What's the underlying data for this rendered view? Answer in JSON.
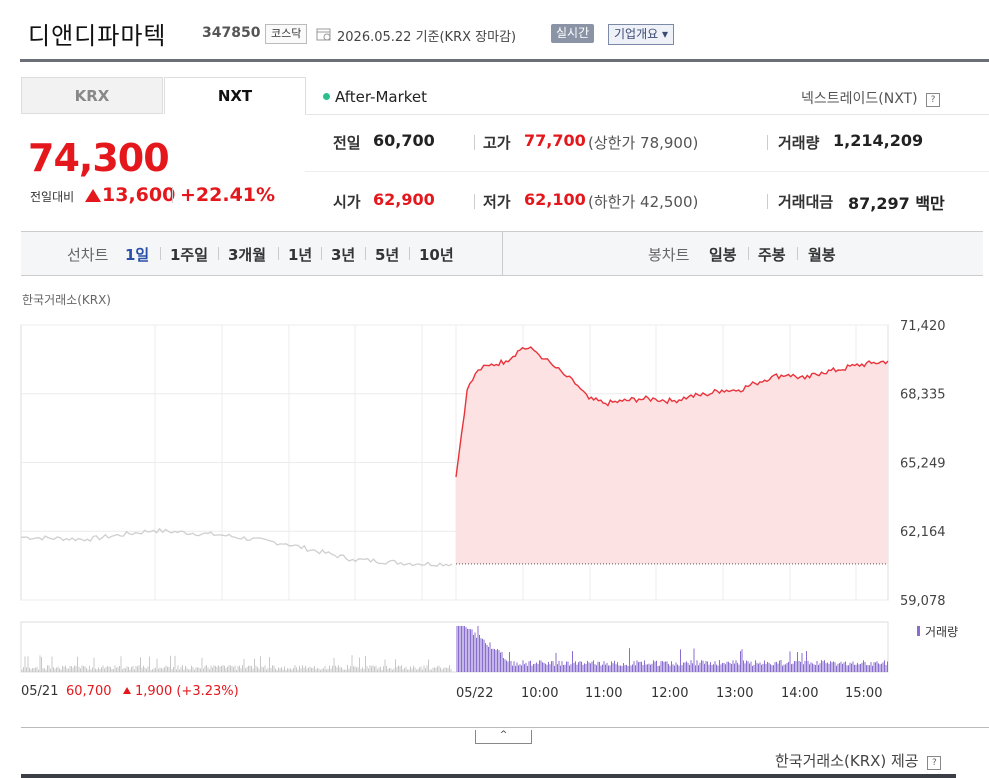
{
  "header": {
    "company_name": "디앤디파마텍",
    "stock_code": "347850",
    "market_badge": "코스닥",
    "date_text": "2026.05.22  기준(KRX 장마감)",
    "realtime_button": "실시간",
    "company_info_button": "기업개요 ▾"
  },
  "tabs": [
    {
      "label": "KRX",
      "selected": false
    },
    {
      "label": "NXT",
      "selected": true
    }
  ],
  "session": {
    "label": "After-Market",
    "nxt_link": "넥스트레이드(NXT)",
    "help": "?"
  },
  "price": {
    "current": "74,300",
    "change_label": "전일대비",
    "change_value": "13,600",
    "change_rate": "+22.41%"
  },
  "quotes": {
    "prev_close": {
      "label": "전일",
      "value": "60,700"
    },
    "high": {
      "label": "고가",
      "value": "77,700",
      "sub": "(상한가 78,900)"
    },
    "volume": {
      "label": "거래량",
      "value": "1,214,209"
    },
    "open": {
      "label": "시가",
      "value": "62,900"
    },
    "low": {
      "label": "저가",
      "value": "62,100",
      "sub": "(하한가 42,500)"
    },
    "trade_amount": {
      "label": "거래대금",
      "value": "87,297 백만"
    }
  },
  "period_bar": {
    "line_label": "선차트",
    "line_periods": [
      "1일",
      "1주일",
      "3개월",
      "1년",
      "3년",
      "5년",
      "10년"
    ],
    "selected_period": "1일",
    "candle_label": "봉차트",
    "candle_periods": [
      "일봉",
      "주봉",
      "월봉"
    ]
  },
  "chart_source": "한국거래소(KRX)",
  "chart_data": {
    "type": "line",
    "y_ticks": [
      "71,420",
      "68,335",
      "65,249",
      "62,164",
      "59,078"
    ],
    "ylim": [
      59078,
      71420
    ],
    "x_ticks": [
      "05/22",
      "10:00",
      "11:00",
      "12:00",
      "13:00",
      "14:00",
      "15:00"
    ],
    "prev_day_label": "05/21",
    "baseline": 60700,
    "colors": {
      "today_line": "#e8333a",
      "today_fill": "#fde2e3",
      "prev_line": "#cfcfcf",
      "volume": "#8a6ecf",
      "prev_volume": "#c8c8c8"
    },
    "volume_legend": "거래량",
    "series": [
      {
        "x": [
          "05/21 09:00",
          "05/21 10:00",
          "05/21 11:00",
          "05/21 12:00",
          "05/21 13:00",
          "05/21 14:00",
          "05/21 15:00",
          "05/21 15:30"
        ],
        "values": [
          61900,
          61800,
          62200,
          62000,
          61600,
          60900,
          60700,
          60700
        ]
      },
      {
        "x": [
          "05/22 09:00",
          "09:10",
          "09:20",
          "09:30",
          "09:45",
          "10:00",
          "10:10",
          "10:20",
          "10:30",
          "10:40",
          "10:50",
          "11:00",
          "11:15",
          "11:30",
          "11:45",
          "12:00",
          "12:15",
          "12:30",
          "12:45",
          "13:00",
          "13:15",
          "13:30",
          "13:45",
          "14:00",
          "14:15",
          "14:30",
          "14:45",
          "15:00",
          "15:15",
          "15:30"
        ],
        "values": [
          64600,
          68500,
          69400,
          69600,
          69800,
          70400,
          70300,
          69900,
          69500,
          69100,
          68700,
          68100,
          67900,
          68000,
          68100,
          68100,
          68000,
          68200,
          68300,
          68500,
          68500,
          68800,
          69100,
          69200,
          69000,
          69300,
          69400,
          69600,
          69700,
          69800
        ]
      }
    ]
  },
  "footer": {
    "prev_date": "05/21",
    "prev_close": "60,700",
    "prev_change": "1,900 (+3.23%)",
    "collapse": "^",
    "provider": "한국거래소(KRX) 제공"
  }
}
